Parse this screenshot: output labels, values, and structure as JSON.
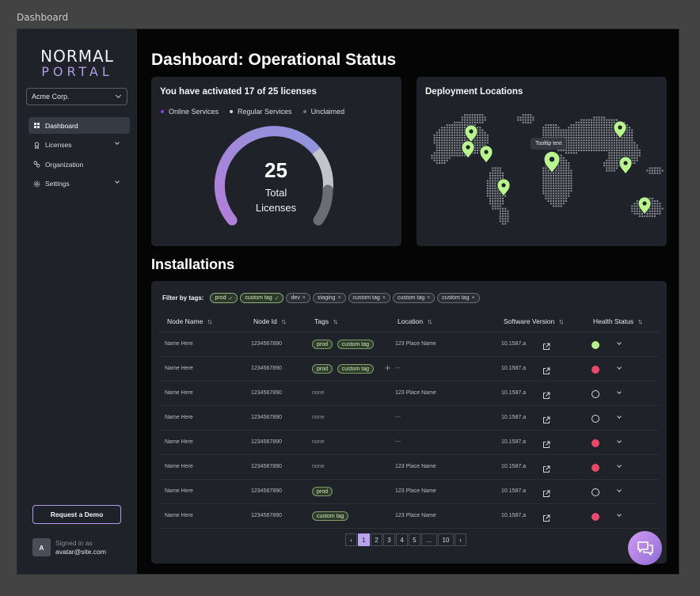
{
  "window": {
    "title": "Dashboard"
  },
  "brand": {
    "line1": "NORMAL",
    "line2": "PORTAL",
    "accent": "#b39ae8"
  },
  "org_select": {
    "value": "Acme Corp."
  },
  "sidebar": {
    "items": [
      {
        "label": "Dashboard",
        "icon": "grid-icon",
        "active": true
      },
      {
        "label": "Licenses",
        "icon": "badge-icon",
        "expandable": true
      },
      {
        "label": "Organization",
        "icon": "link-icon"
      },
      {
        "label": "Settings",
        "icon": "gear-icon",
        "expandable": true
      }
    ],
    "demo_button": "Request a Demo",
    "signed_in": {
      "avatar": "A",
      "label": "Signed in as",
      "email": "avatar@site.com"
    }
  },
  "page": {
    "title": "Dashboard: Operational Status"
  },
  "licenses_card": {
    "title": "You have activated 17 of 25 licenses",
    "legend": [
      {
        "label": "Online Services",
        "color": "#8a3ff0"
      },
      {
        "label": "Regular Services",
        "color": "#d8d9de"
      },
      {
        "label": "Unclaimed",
        "color": "#6f727a"
      }
    ],
    "gauge": {
      "total": "25",
      "label": "Total Licenses",
      "online": 10,
      "regular": 7,
      "unclaimed": 8
    }
  },
  "map_card": {
    "title": "Deployment Locations",
    "tooltip": "Tooltip text",
    "pin_color": "#b8f58e"
  },
  "installations": {
    "title": "Installations",
    "filter_label": "Filter by tags:",
    "filter_tags": [
      {
        "label": "prod",
        "selected": true
      },
      {
        "label": "custom tag",
        "selected": true
      },
      {
        "label": "dev",
        "selected": false
      },
      {
        "label": "staging",
        "selected": false
      },
      {
        "label": "custom tag",
        "selected": false
      },
      {
        "label": "custom tag",
        "selected": false
      },
      {
        "label": "custom tag",
        "selected": false
      }
    ],
    "columns": [
      "Node Name",
      "Node Id",
      "Tags",
      "Location",
      "Software Version",
      "Health Status"
    ],
    "rows": [
      {
        "name": "Name Here",
        "id": "1234567890",
        "tags": [
          "prod",
          "custom tag"
        ],
        "location": "123 Place Name",
        "version": "10.1587.a",
        "health": "ok"
      },
      {
        "name": "Name Here",
        "id": "1234567890",
        "tags": [
          "prod",
          "custom tag"
        ],
        "add_tag": true,
        "location": "---",
        "version": "10.1587.a",
        "health": "bad"
      },
      {
        "name": "Name Here",
        "id": "1234567890",
        "tags_text": "none",
        "location": "123 Place Name",
        "version": "10.1587.a",
        "health": "none"
      },
      {
        "name": "Name Here",
        "id": "1234567890",
        "tags_text": "none",
        "location": "---",
        "version": "10.1587.a",
        "health": "none"
      },
      {
        "name": "Name Here",
        "id": "1234567890",
        "tags_text": "none",
        "location": "---",
        "version": "10.1587.a",
        "health": "bad"
      },
      {
        "name": "Name Here",
        "id": "1234567890",
        "tags_text": "none",
        "location": "123 Place Name",
        "version": "10.1587.a",
        "health": "bad"
      },
      {
        "name": "Name Here",
        "id": "1234567890",
        "tags": [
          "prod"
        ],
        "location": "123 Place Name",
        "version": "10.1587.a",
        "health": "none"
      },
      {
        "name": "Name Here",
        "id": "1234567890",
        "tags": [
          "custom tag"
        ],
        "location": "123 Place Name",
        "version": "10.1587.a",
        "health": "bad"
      }
    ],
    "pagination": {
      "prev": "‹",
      "pages": [
        "1",
        "2",
        "3",
        "4",
        "5",
        "...",
        "10"
      ],
      "current": "1",
      "next": "›"
    }
  }
}
